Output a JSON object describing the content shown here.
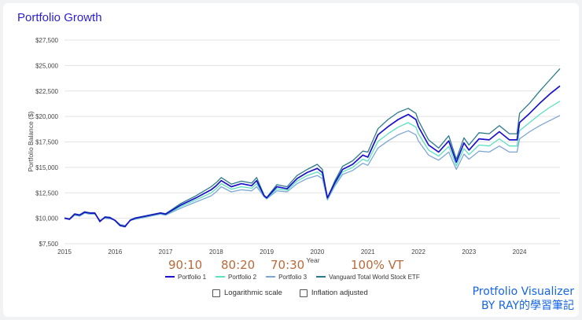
{
  "title": "Portfolio Growth",
  "annotations": [
    "90:10",
    "80:20",
    "70:30",
    "100% VT"
  ],
  "options": [
    {
      "label": "Logarithmic scale",
      "checked": false
    },
    {
      "label": "Inflation adjusted",
      "checked": false
    }
  ],
  "watermark": {
    "line1": "Protfolio Visualizer",
    "line2": "BY  RAY的學習筆記"
  },
  "chart_data": {
    "type": "line",
    "xlabel": "Year",
    "ylabel": "Portfolio Balance ($)",
    "ylim": [
      7500,
      27500
    ],
    "xlim": [
      2015,
      2024.8
    ],
    "y_ticks": [
      "$7,500",
      "$10,000",
      "$12,500",
      "$15,000",
      "$17,500",
      "$20,000",
      "$22,500",
      "$25,000",
      "$27,500"
    ],
    "y_tick_values": [
      7500,
      10000,
      12500,
      15000,
      17500,
      20000,
      22500,
      25000,
      27500
    ],
    "x_ticks": [
      "2015",
      "2016",
      "2017",
      "2018",
      "2019",
      "2020",
      "2021",
      "2022",
      "2023",
      "2024"
    ],
    "grid": "horizontal",
    "legend_position": "bottom",
    "x": [
      2015.0,
      2015.1,
      2015.2,
      2015.3,
      2015.4,
      2015.5,
      2015.6,
      2015.7,
      2015.8,
      2015.9,
      2016.0,
      2016.1,
      2016.2,
      2016.3,
      2016.4,
      2016.5,
      2016.7,
      2016.9,
      2017.0,
      2017.3,
      2017.6,
      2017.9,
      2018.0,
      2018.1,
      2018.3,
      2018.5,
      2018.7,
      2018.8,
      2018.95,
      2019.0,
      2019.2,
      2019.4,
      2019.6,
      2019.8,
      2020.0,
      2020.1,
      2020.2,
      2020.35,
      2020.5,
      2020.7,
      2020.9,
      2021.0,
      2021.2,
      2021.4,
      2021.6,
      2021.8,
      2021.95,
      2022.0,
      2022.2,
      2022.4,
      2022.6,
      2022.75,
      2022.9,
      2023.0,
      2023.2,
      2023.4,
      2023.6,
      2023.8,
      2023.95,
      2024.0,
      2024.2,
      2024.4,
      2024.6,
      2024.8
    ],
    "series": [
      {
        "name": "Portfolio 1",
        "color": "#1a11c9",
        "values": [
          10000,
          9900,
          10400,
          10300,
          10600,
          10500,
          10500,
          9700,
          10100,
          10050,
          9800,
          9300,
          9200,
          9800,
          10000,
          10100,
          10300,
          10500,
          10400,
          11300,
          12000,
          12800,
          13200,
          13700,
          13100,
          13400,
          13200,
          13700,
          12200,
          12000,
          13100,
          12900,
          13900,
          14500,
          14900,
          14500,
          12000,
          13500,
          14800,
          15300,
          16200,
          16000,
          18200,
          19000,
          19700,
          20200,
          19700,
          19000,
          17200,
          16500,
          17600,
          15500,
          17400,
          16700,
          17800,
          17700,
          18500,
          17700,
          17700,
          19400,
          20300,
          21300,
          22200,
          23000
        ]
      },
      {
        "name": "Portfolio 2",
        "color": "#5de0c0",
        "values": [
          10000,
          9900,
          10350,
          10250,
          10550,
          10450,
          10450,
          9750,
          10050,
          10000,
          9800,
          9350,
          9250,
          9800,
          9950,
          10050,
          10250,
          10450,
          10350,
          11150,
          11800,
          12500,
          12900,
          13400,
          12850,
          13100,
          12950,
          13400,
          12150,
          11950,
          12900,
          12750,
          13650,
          14200,
          14550,
          14200,
          11900,
          13350,
          14550,
          15000,
          15800,
          15600,
          17550,
          18300,
          18950,
          19400,
          18950,
          18300,
          16700,
          16100,
          17050,
          15150,
          16850,
          16250,
          17200,
          17100,
          17800,
          17100,
          17100,
          18600,
          19400,
          20200,
          20900,
          21500
        ]
      },
      {
        "name": "Portfolio 3",
        "color": "#7ea6d4",
        "values": [
          10000,
          9900,
          10300,
          10200,
          10500,
          10400,
          10400,
          9800,
          10000,
          9950,
          9800,
          9400,
          9300,
          9800,
          9900,
          10000,
          10200,
          10400,
          10300,
          11000,
          11600,
          12200,
          12600,
          13100,
          12600,
          12800,
          12700,
          13100,
          12100,
          11900,
          12700,
          12600,
          13400,
          13900,
          14200,
          13900,
          11800,
          13200,
          14300,
          14700,
          15400,
          15200,
          16900,
          17600,
          18200,
          18600,
          18200,
          17600,
          16200,
          15700,
          16500,
          14800,
          16300,
          15800,
          16600,
          16500,
          17100,
          16500,
          16500,
          17800,
          18500,
          19100,
          19600,
          20100
        ]
      },
      {
        "name": "Vanguard Total World Stock ETF",
        "color": "#2b7a8c",
        "values": [
          10050,
          9950,
          10450,
          10350,
          10650,
          10550,
          10550,
          9650,
          10150,
          10100,
          9750,
          9250,
          9150,
          9850,
          10050,
          10150,
          10350,
          10550,
          10450,
          11450,
          12200,
          13100,
          13500,
          14000,
          13350,
          13650,
          13450,
          14000,
          12250,
          12050,
          13300,
          13100,
          14200,
          14800,
          15300,
          14800,
          12000,
          13700,
          15100,
          15650,
          16600,
          16500,
          18800,
          19700,
          20400,
          20800,
          20300,
          19600,
          17700,
          16900,
          18100,
          15800,
          17900,
          17200,
          18400,
          18300,
          19100,
          18300,
          18300,
          20300,
          21300,
          22500,
          23600,
          24700
        ]
      }
    ]
  }
}
